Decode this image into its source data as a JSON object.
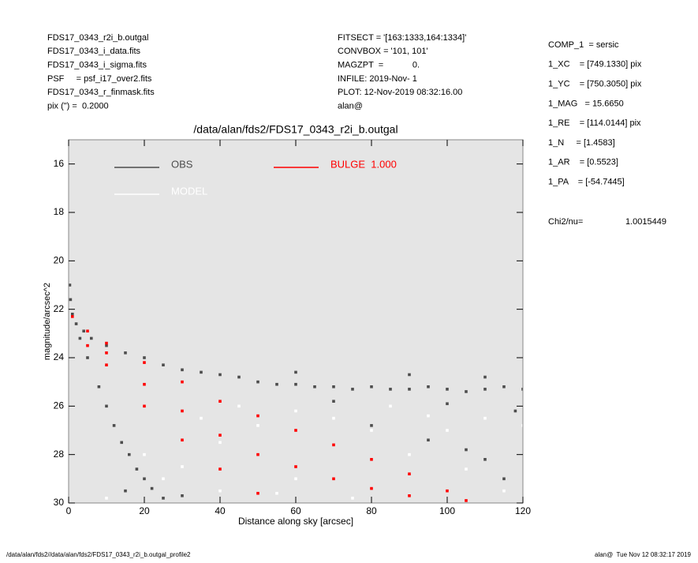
{
  "header": {
    "left": [
      "FDS17_0343_r2i_b.outgal",
      "FDS17_0343_i_data.fits",
      "FDS17_0343_i_sigma.fits",
      "PSF     = psf_i17_over2.fits",
      "FDS17_0343_r_finmask.fits",
      "pix (\") =  0.2000"
    ],
    "middle": [
      "FITSECT = '[163:1333,164:1334]'",
      "CONVBOX = '101, 101'",
      "MAGZPT  =            0.",
      "INFILE: 2019-Nov- 1",
      "PLOT: 12-Nov-2019 08:32:16.00",
      "alan@"
    ],
    "right": [
      "COMP_1  = sersic",
      "1_XC    = [749.1330] pix",
      "1_YC    = [750.3050] pix",
      "1_MAG   = 15.6650",
      "1_RE    = [114.0144] pix",
      "1_N     = [1.4583]",
      "1_AR    = [0.5523]",
      "1_PA    = [-54.7445]"
    ],
    "chi2_label": "Chi2/nu=",
    "chi2_value": "1.0015449"
  },
  "footer": {
    "left": "/data/alan/fds2//data/alan/fds2/FDS17_0343_r2i_b.outgal_profile2",
    "right": "alan@  Tue Nov 12 08:32:17 2019"
  },
  "chart_data": {
    "type": "scatter",
    "title": "/data/alan/fds2/FDS17_0343_r2i_b.outgal",
    "x_label": "Distance along sky [arcsec]",
    "y_label": "magnitude/arcsec^2",
    "xlim": [
      0,
      120
    ],
    "xticks": [
      0,
      20,
      40,
      60,
      80,
      100,
      120
    ],
    "ylim": [
      15,
      30
    ],
    "y_inverted": true,
    "yticks": [
      16,
      18,
      20,
      22,
      24,
      26,
      28,
      30
    ],
    "series": [
      {
        "name": "OBS",
        "color": "#4d4d4d",
        "x": [
          0.3,
          0.5,
          1,
          2,
          4,
          6,
          10,
          15,
          20,
          25,
          30,
          35,
          40,
          45,
          50,
          55,
          60,
          65,
          70,
          75,
          80,
          85,
          90,
          95,
          100,
          105,
          110,
          115,
          120,
          60,
          90,
          110,
          70,
          100,
          118,
          80,
          95,
          110,
          115,
          105,
          3,
          5,
          8,
          10,
          12,
          14,
          16,
          18,
          20,
          22,
          25,
          15,
          30
        ],
        "y": [
          21.0,
          21.6,
          22.2,
          22.6,
          22.9,
          23.2,
          23.5,
          23.8,
          24.0,
          24.3,
          24.5,
          24.6,
          24.7,
          24.8,
          25.0,
          25.1,
          25.1,
          25.2,
          25.2,
          25.3,
          25.2,
          25.3,
          25.3,
          25.2,
          25.3,
          25.4,
          25.3,
          25.2,
          25.3,
          24.6,
          24.7,
          24.8,
          25.8,
          25.9,
          26.2,
          26.8,
          27.4,
          28.2,
          29.0,
          27.8,
          23.2,
          24.0,
          25.2,
          26.0,
          26.8,
          27.5,
          28.0,
          28.6,
          29.0,
          29.4,
          29.8,
          29.5,
          29.7
        ]
      },
      {
        "name": "MODEL",
        "color": "#ffffff",
        "x": [
          10,
          20,
          25,
          30,
          40,
          40,
          50,
          60,
          60,
          70,
          80,
          85,
          90,
          100,
          110,
          115,
          120,
          35,
          45,
          55,
          75,
          95,
          105
        ],
        "y": [
          29.8,
          28.0,
          29.0,
          28.5,
          27.5,
          29.5,
          26.8,
          26.2,
          29.0,
          26.5,
          27.0,
          26.0,
          28.0,
          27.0,
          26.5,
          29.5,
          26.8,
          26.5,
          26.0,
          29.6,
          29.8,
          26.4,
          28.6
        ]
      },
      {
        "name": "BULGE  1.000",
        "color": "#ff0000",
        "x": [
          1,
          5,
          5,
          10,
          10,
          10,
          20,
          20,
          20,
          30,
          30,
          30,
          40,
          40,
          40,
          50,
          50,
          50,
          60,
          60,
          70,
          70,
          80,
          80,
          90,
          90,
          100,
          105
        ],
        "y": [
          22.3,
          22.9,
          23.5,
          23.4,
          24.3,
          23.8,
          24.2,
          26.0,
          25.1,
          25.0,
          27.4,
          26.2,
          25.8,
          28.6,
          27.2,
          26.4,
          29.6,
          28.0,
          27.0,
          28.5,
          27.6,
          29.0,
          28.2,
          29.4,
          28.8,
          29.7,
          29.5,
          29.9
        ]
      }
    ]
  }
}
